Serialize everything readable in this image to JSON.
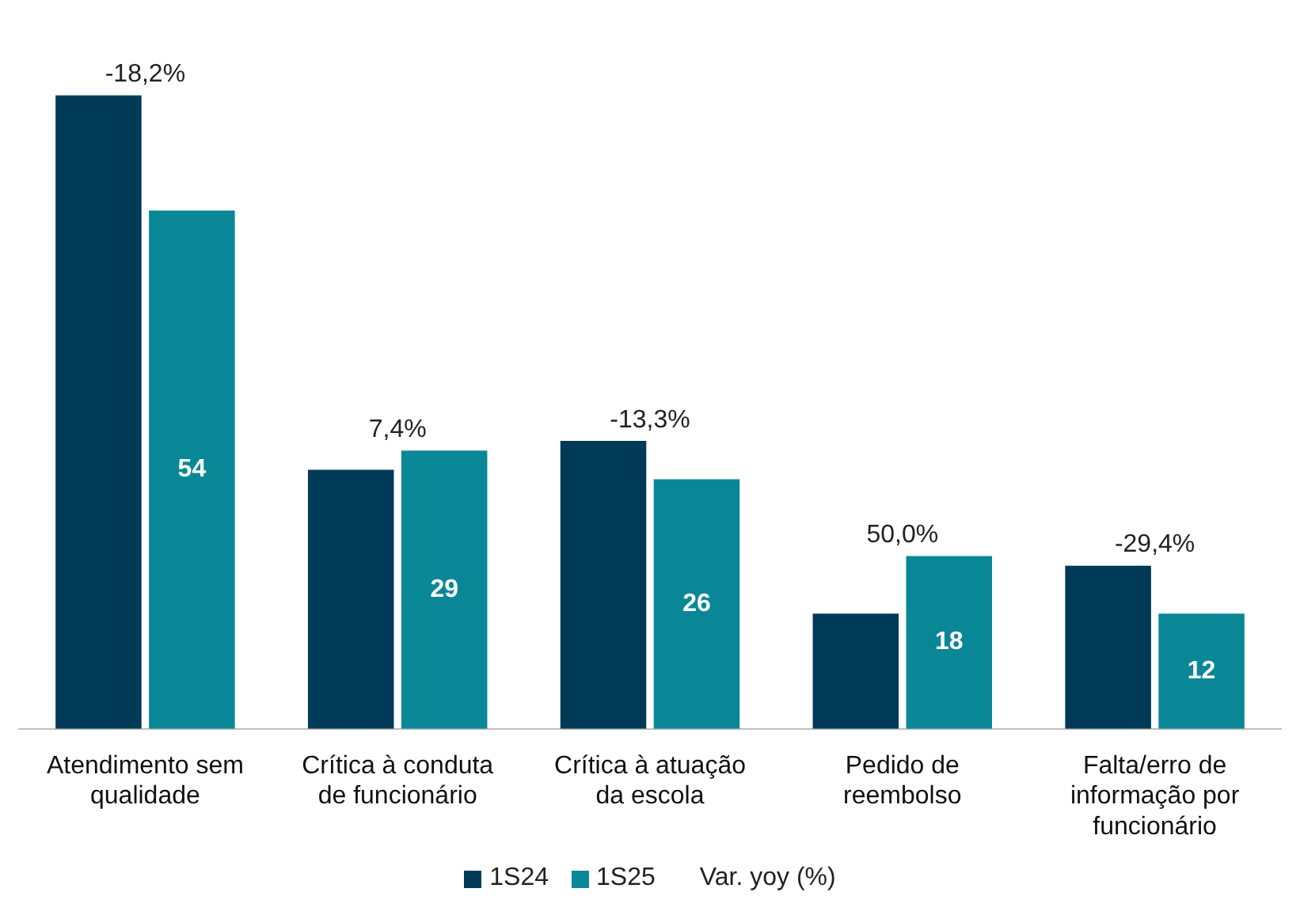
{
  "chart_data": {
    "type": "bar",
    "categories": [
      "Atendimento sem qualidade",
      "Crítica à conduta de funcionário",
      "Crítica à atuação da escola",
      "Pedido de reembolso",
      "Falta/erro de informação por funcionário"
    ],
    "series": [
      {
        "name": "1S24",
        "color": "#003a57",
        "values": [
          66,
          27,
          30,
          12,
          17
        ]
      },
      {
        "name": "1S25",
        "color": "#0a8796",
        "values": [
          54,
          29,
          26,
          18,
          12
        ],
        "value_labels": [
          "54",
          "29",
          "26",
          "18",
          "12"
        ]
      }
    ],
    "annotations": [
      {
        "text": "-18,2%",
        "x": "Atendimento sem qualidade",
        "y": 66
      },
      {
        "text": "7,4%",
        "x": "Crítica à conduta de funcionário",
        "y": 29
      },
      {
        "text": "-13,3%",
        "x": "Crítica à atuação da escola",
        "y": 30
      },
      {
        "text": "50,0%",
        "x": "Pedido de reembolso",
        "y": 18
      },
      {
        "text": "-29,4%",
        "x": "Falta/erro de informação por funcionário",
        "y": 17
      },
      "Var. yoy (%)"
    ],
    "legend": "bottom",
    "grid": false
  }
}
